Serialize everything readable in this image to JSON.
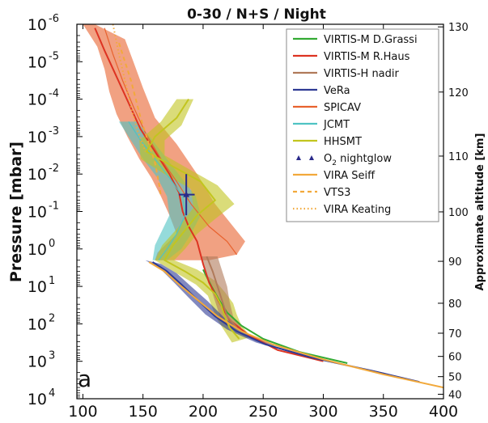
{
  "chart_data": {
    "type": "line",
    "title": "0-30 / N+S / Night",
    "panel_label": "a",
    "ylabel": "Pressure [mbar]",
    "y2label": "Approximate altitude [km]",
    "xlabel": "",
    "y_scale": "log",
    "y_inverted": true,
    "xlim": [
      95,
      400
    ],
    "ylim_log10": [
      -6,
      4
    ],
    "x_ticks": [
      "100",
      "150",
      "200",
      "250",
      "300",
      "350",
      "400"
    ],
    "y_ticks": [
      {
        "base": "10",
        "exp": "-6",
        "log10": -6
      },
      {
        "base": "10",
        "exp": "-5",
        "log10": -5
      },
      {
        "base": "10",
        "exp": "-4",
        "log10": -4
      },
      {
        "base": "10",
        "exp": "-3",
        "log10": -3
      },
      {
        "base": "10",
        "exp": "-2",
        "log10": -2
      },
      {
        "base": "10",
        "exp": "-1",
        "log10": -1
      },
      {
        "base": "10",
        "exp": "0",
        "log10": 0
      },
      {
        "base": "10",
        "exp": "1",
        "log10": 1
      },
      {
        "base": "10",
        "exp": "2",
        "log10": 2
      },
      {
        "base": "10",
        "exp": "3",
        "log10": 3
      },
      {
        "base": "10",
        "exp": "4",
        "log10": 4
      }
    ],
    "altitude_ticks": [
      {
        "label": "130",
        "log10": -5.93
      },
      {
        "label": "120",
        "log10": -4.19
      },
      {
        "label": "110",
        "log10": -2.48
      },
      {
        "label": "100",
        "log10": -0.99
      },
      {
        "label": "90",
        "log10": 0.33
      },
      {
        "label": "80",
        "log10": 1.45
      },
      {
        "label": "70",
        "log10": 2.25
      },
      {
        "label": "60",
        "log10": 2.87
      },
      {
        "label": "50",
        "log10": 3.41
      },
      {
        "label": "40",
        "log10": 3.88
      }
    ],
    "legend_position": "top-right",
    "series": [
      {
        "name": "VIRTIS-M D.Grassi",
        "color": "#33aa33",
        "style": "solid",
        "points": [
          [
            200,
            0.55
          ],
          [
            207,
            1.0
          ],
          [
            213,
            1.35
          ],
          [
            220,
            1.7
          ],
          [
            232,
            2.05
          ],
          [
            250,
            2.4
          ],
          [
            280,
            2.75
          ],
          [
            320,
            3.05
          ]
        ]
      },
      {
        "name": "VIRTIS-M R.Haus",
        "color": "#dd3322",
        "style": "solid",
        "points": [
          [
            110,
            -5.9
          ],
          [
            118,
            -5.3
          ],
          [
            128,
            -4.6
          ],
          [
            138,
            -3.9
          ],
          [
            148,
            -3.2
          ],
          [
            160,
            -2.6
          ],
          [
            172,
            -2.0
          ],
          [
            180,
            -1.5
          ],
          [
            183,
            -1.0
          ],
          [
            188,
            -0.6
          ],
          [
            195,
            -0.2
          ],
          [
            200,
            0.4
          ],
          [
            205,
            0.9
          ],
          [
            213,
            1.4
          ],
          [
            222,
            1.9
          ],
          [
            238,
            2.3
          ],
          [
            262,
            2.7
          ],
          [
            300,
            3.0
          ]
        ]
      },
      {
        "name": "VIRTIS-H nadir",
        "color": "#b07a5a",
        "style": "solid",
        "points": [
          [
            203,
            0.2
          ],
          [
            208,
            0.6
          ],
          [
            212,
            1.0
          ],
          [
            216,
            1.4
          ],
          [
            220,
            1.8
          ],
          [
            228,
            2.1
          ]
        ]
      },
      {
        "name": "VeRa",
        "color": "#2e3a94",
        "style": "solid",
        "points": [
          [
            158,
            0.35
          ],
          [
            170,
            0.6
          ],
          [
            182,
            0.95
          ],
          [
            195,
            1.35
          ],
          [
            210,
            1.8
          ],
          [
            228,
            2.2
          ],
          [
            252,
            2.55
          ],
          [
            290,
            2.9
          ],
          [
            340,
            3.25
          ],
          [
            380,
            3.55
          ]
        ]
      },
      {
        "name": "SPICAV",
        "color": "#e8622e",
        "style": "band",
        "points": [
          [
            118,
            -5.9
          ],
          [
            125,
            -5.2
          ],
          [
            133,
            -4.5
          ],
          [
            142,
            -3.8
          ],
          [
            152,
            -3.1
          ],
          [
            165,
            -2.4
          ],
          [
            178,
            -1.8
          ],
          [
            190,
            -1.2
          ],
          [
            205,
            -0.6
          ],
          [
            220,
            -0.2
          ],
          [
            228,
            0.15
          ]
        ]
      },
      {
        "name": "JCMT",
        "color": "#4fc3c3",
        "style": "band",
        "points": [
          [
            138,
            -3.4
          ],
          [
            148,
            -2.9
          ],
          [
            160,
            -2.4
          ],
          [
            172,
            -1.9
          ],
          [
            183,
            -1.4
          ],
          [
            185,
            -0.9
          ],
          [
            178,
            -0.4
          ],
          [
            170,
            0.0
          ],
          [
            163,
            0.3
          ]
        ]
      },
      {
        "name": "HHSMT",
        "color": "#c2c51f",
        "style": "solid",
        "points": [
          [
            188,
            -4.0
          ],
          [
            178,
            -3.5
          ],
          [
            160,
            -3.0
          ],
          [
            153,
            -2.6
          ],
          [
            175,
            -2.2
          ],
          [
            198,
            -1.8
          ],
          [
            210,
            -1.3
          ],
          [
            195,
            -0.9
          ],
          [
            185,
            -0.5
          ],
          [
            175,
            -0.1
          ],
          [
            168,
            0.3
          ],
          [
            185,
            0.6
          ],
          [
            200,
            0.9
          ],
          [
            210,
            1.2
          ],
          [
            215,
            1.5
          ],
          [
            218,
            1.8
          ],
          [
            222,
            2.1
          ],
          [
            230,
            2.4
          ]
        ]
      },
      {
        "name": "O2 nightglow",
        "color": "#2a2a8a",
        "style": "marker",
        "points": [
          [
            186,
            -1.45
          ]
        ]
      },
      {
        "name": "VIRA Seiff",
        "color": "#f2a93b",
        "style": "solid",
        "points": [
          [
            155,
            0.35
          ],
          [
            168,
            0.6
          ],
          [
            180,
            0.95
          ],
          [
            195,
            1.35
          ],
          [
            212,
            1.8
          ],
          [
            232,
            2.2
          ],
          [
            258,
            2.55
          ],
          [
            300,
            2.95
          ],
          [
            350,
            3.35
          ],
          [
            400,
            3.7
          ]
        ]
      },
      {
        "name": "VTS3",
        "color": "#f2a93b",
        "style": "dashed",
        "points": [
          [
            130,
            -5.5
          ],
          [
            140,
            -4.5
          ],
          [
            148,
            -3.5
          ],
          [
            155,
            -2.8
          ],
          [
            160,
            -2.3
          ],
          [
            163,
            -1.8
          ],
          [
            165,
            -1.4
          ]
        ]
      },
      {
        "name": "VIRA Keating",
        "color": "#f2a93b",
        "style": "dotted",
        "points": [
          [
            125,
            -6.0
          ],
          [
            130,
            -5.2
          ],
          [
            135,
            -4.5
          ],
          [
            140,
            -3.8
          ],
          [
            145,
            -3.2
          ],
          [
            152,
            -2.6
          ]
        ]
      }
    ],
    "bands": [
      {
        "series": "SPICAV",
        "color": "#e8622e",
        "left": [
          [
            100,
            -6.0
          ],
          [
            112,
            -5.4
          ],
          [
            118,
            -4.8
          ],
          [
            122,
            -4.2
          ],
          [
            128,
            -3.6
          ],
          [
            137,
            -3.0
          ],
          [
            147,
            -2.4
          ],
          [
            157,
            -1.9
          ],
          [
            165,
            -1.4
          ],
          [
            172,
            -0.9
          ],
          [
            178,
            -0.4
          ],
          [
            162,
            0.1
          ],
          [
            160,
            0.3
          ]
        ],
        "right": [
          [
            110,
            -6.0
          ],
          [
            135,
            -5.6
          ],
          [
            142,
            -5.0
          ],
          [
            150,
            -4.3
          ],
          [
            160,
            -3.5
          ],
          [
            178,
            -2.8
          ],
          [
            195,
            -2.0
          ],
          [
            210,
            -1.2
          ],
          [
            225,
            -0.6
          ],
          [
            235,
            -0.2
          ],
          [
            228,
            0.15
          ],
          [
            205,
            0.3
          ],
          [
            160,
            0.3
          ]
        ]
      },
      {
        "series": "JCMT",
        "color": "#4fc3c3",
        "left": [
          [
            130,
            -3.4
          ],
          [
            140,
            -2.9
          ],
          [
            150,
            -2.4
          ],
          [
            162,
            -1.9
          ],
          [
            170,
            -1.4
          ],
          [
            172,
            -0.9
          ],
          [
            166,
            -0.5
          ],
          [
            160,
            -0.1
          ],
          [
            158,
            0.3
          ]
        ],
        "right": [
          [
            145,
            -3.4
          ],
          [
            158,
            -2.9
          ],
          [
            170,
            -2.4
          ],
          [
            182,
            -1.9
          ],
          [
            194,
            -1.4
          ],
          [
            198,
            -0.9
          ],
          [
            190,
            -0.4
          ],
          [
            182,
            0.0
          ],
          [
            170,
            0.3
          ]
        ]
      },
      {
        "series": "HHSMT",
        "color": "#c2c51f",
        "left": [
          [
            178,
            -4.0
          ],
          [
            165,
            -3.4
          ],
          [
            147,
            -2.9
          ],
          [
            148,
            -2.4
          ],
          [
            168,
            -2.0
          ],
          [
            190,
            -1.6
          ],
          [
            192,
            -1.1
          ],
          [
            180,
            -0.6
          ],
          [
            166,
            -0.1
          ],
          [
            160,
            0.3
          ],
          [
            178,
            0.65
          ],
          [
            194,
            0.95
          ],
          [
            204,
            1.25
          ],
          [
            208,
            1.6
          ],
          [
            212,
            1.9
          ],
          [
            218,
            2.2
          ],
          [
            224,
            2.5
          ]
        ],
        "right": [
          [
            192,
            -4.0
          ],
          [
            182,
            -3.3
          ],
          [
            168,
            -2.9
          ],
          [
            168,
            -2.5
          ],
          [
            190,
            -2.1
          ],
          [
            212,
            -1.7
          ],
          [
            226,
            -1.2
          ],
          [
            210,
            -0.8
          ],
          [
            195,
            -0.4
          ],
          [
            185,
            0.0
          ],
          [
            176,
            0.3
          ],
          [
            195,
            0.55
          ],
          [
            210,
            0.85
          ],
          [
            218,
            1.15
          ],
          [
            225,
            1.45
          ],
          [
            228,
            1.75
          ],
          [
            232,
            2.05
          ],
          [
            240,
            2.35
          ]
        ]
      },
      {
        "series": "VIRTIS-H nadir",
        "color": "#b07a5a",
        "left": [
          [
            198,
            0.2
          ],
          [
            202,
            0.6
          ],
          [
            206,
            1.0
          ],
          [
            210,
            1.4
          ],
          [
            214,
            1.8
          ],
          [
            222,
            2.1
          ]
        ],
        "right": [
          [
            212,
            0.2
          ],
          [
            216,
            0.6
          ],
          [
            220,
            1.0
          ],
          [
            222,
            1.4
          ],
          [
            225,
            1.8
          ],
          [
            232,
            2.1
          ]
        ]
      },
      {
        "series": "VeRa",
        "color": "#2e3a94",
        "left": [
          [
            152,
            0.3
          ],
          [
            165,
            0.55
          ],
          [
            176,
            0.9
          ],
          [
            188,
            1.3
          ],
          [
            202,
            1.75
          ],
          [
            220,
            2.15
          ],
          [
            244,
            2.5
          ],
          [
            282,
            2.85
          ],
          [
            330,
            3.2
          ],
          [
            375,
            3.5
          ]
        ],
        "right": [
          [
            165,
            0.4
          ],
          [
            178,
            0.65
          ],
          [
            190,
            1.0
          ],
          [
            204,
            1.4
          ],
          [
            218,
            1.85
          ],
          [
            236,
            2.25
          ],
          [
            260,
            2.6
          ],
          [
            298,
            2.95
          ],
          [
            350,
            3.3
          ],
          [
            385,
            3.6
          ]
        ]
      }
    ],
    "errorbar": {
      "series": "O2 nightglow",
      "x": 186,
      "y_log10": -1.45,
      "y_err_log10": [
        -2.0,
        -0.9
      ],
      "x_err": [
        180,
        193
      ]
    }
  }
}
